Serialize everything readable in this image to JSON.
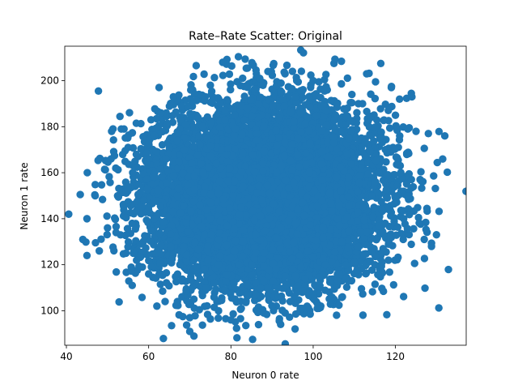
{
  "chart_data": {
    "type": "scatter",
    "title": "Rate–Rate Scatter: Original",
    "xlabel": "Neuron 0 rate",
    "ylabel": "Neuron 1 rate",
    "xlim": [
      39.6,
      137.2
    ],
    "ylim": [
      85.0,
      215.0
    ],
    "xticks": [
      "40",
      "60",
      "80",
      "100",
      "120"
    ],
    "yticks": [
      "100",
      "120",
      "140",
      "160",
      "180",
      "200"
    ],
    "grid": false,
    "legend": "none",
    "marker_color": "#1f77b4",
    "point_count": 10000,
    "distribution": {
      "x_mean": 88,
      "x_std": 13.5,
      "y_mean": 150,
      "y_std": 19,
      "correlation": 0.02
    },
    "series": [
      {
        "x": [
          45,
          44,
          45,
          47,
          48,
          50,
          51,
          52,
          54,
          55,
          55,
          56,
          56,
          57,
          58,
          60,
          61,
          62,
          63,
          64,
          66,
          67,
          67,
          68,
          69,
          70,
          70,
          71,
          72,
          73,
          74,
          75,
          76,
          77,
          78,
          80,
          81,
          82,
          84,
          85,
          86,
          87,
          88,
          89,
          90,
          91,
          92,
          93,
          95,
          96,
          97,
          98,
          99,
          100,
          101,
          103,
          104,
          105,
          106,
          107,
          108,
          110,
          111,
          112,
          113,
          114,
          115,
          116,
          117,
          118,
          119,
          120,
          121,
          122,
          123,
          124,
          125,
          126,
          127,
          128,
          132
        ],
        "y": [
          140,
          131,
          124,
          150,
          126,
          136,
          178,
          162,
          179,
          154,
          171,
          138,
          111,
          168,
          129,
          116,
          147,
          102,
          186,
          104,
          193,
          174,
          104,
          189,
          181,
          91,
          97,
          105,
          184,
          108,
          110,
          198,
          112,
          120,
          208,
          96,
          105,
          120,
          107,
          120,
          107,
          201,
          99,
          204,
          175,
          118,
          127,
          189,
          118,
          200,
          119,
          114,
          193,
          200,
          101,
          120,
          151,
          173,
          113,
          130,
          120,
          121,
          190,
          190,
          203,
          184,
          120,
          160,
          127,
          149,
          197,
          185,
          192,
          140,
          179,
          193,
          178,
          157,
          131,
          177,
          176
        ]
      }
    ]
  }
}
